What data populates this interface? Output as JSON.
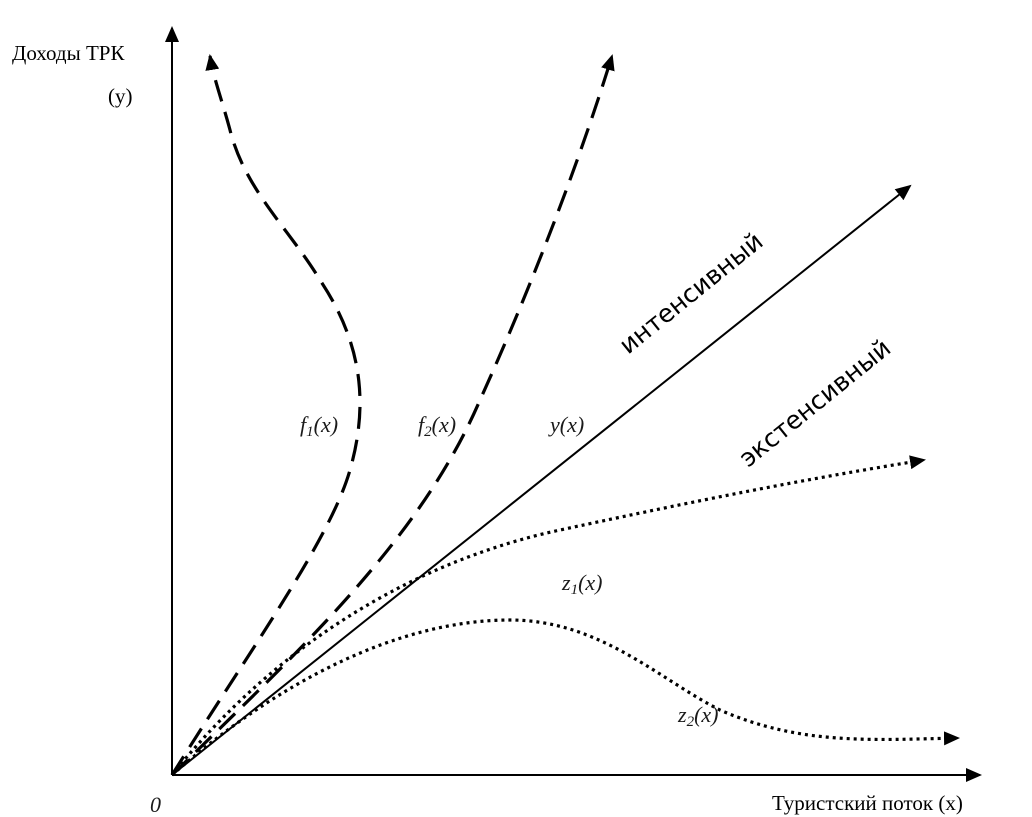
{
  "axes": {
    "y_label_line1": "Доходы ТРК",
    "y_label_line2": "(у)",
    "x_label": "Туристский поток (х)",
    "origin_label": "0"
  },
  "curves": {
    "f1": {
      "label_main": "f",
      "label_sub": "1",
      "label_arg": "(x)"
    },
    "f2": {
      "label_main": "f",
      "label_sub": "2",
      "label_arg": "(x)"
    },
    "y": {
      "label": "y(x)"
    },
    "z1": {
      "label_main": "z",
      "label_sub": "1",
      "label_arg": "(x)"
    },
    "z2": {
      "label_main": "z",
      "label_sub": "2",
      "label_arg": "(x)"
    }
  },
  "regions": {
    "intensive": "интенсивный",
    "extensive": "экстенсивный"
  }
}
